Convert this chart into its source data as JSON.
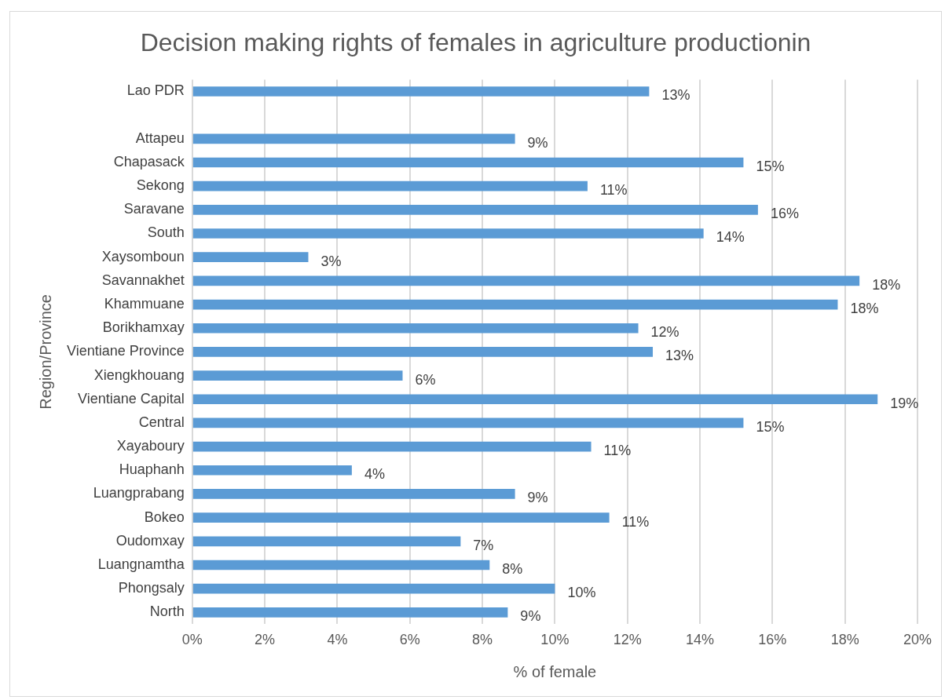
{
  "chart_data": {
    "type": "bar",
    "orientation": "horizontal",
    "title": "Decision making rights of females in agriculture productionin",
    "xlabel": "% of female",
    "ylabel": "Region/Province",
    "categories": [
      "Lao PDR",
      null,
      "Attapeu",
      "Chapasack",
      "Sekong",
      "Saravane",
      "South",
      "Xaysomboun",
      "Savannakhet",
      "Khammuane",
      "Borikhamxay",
      "Vientiane Province",
      "Xiengkhouang",
      "Vientiane Capital",
      "Central",
      "Xayaboury",
      "Huaphanh",
      "Luangprabang",
      "Bokeo",
      "Oudomxay",
      "Luangnamtha",
      "Phongsaly",
      "North"
    ],
    "values": [
      12.6,
      null,
      8.9,
      15.2,
      10.9,
      15.6,
      14.1,
      3.2,
      18.4,
      17.8,
      12.3,
      12.7,
      5.8,
      18.9,
      15.2,
      11.0,
      4.4,
      8.9,
      11.5,
      7.4,
      8.2,
      10.0,
      8.7
    ],
    "value_labels": [
      "13%",
      null,
      "9%",
      "15%",
      "11%",
      "16%",
      "14%",
      "3%",
      "18%",
      "18%",
      "12%",
      "13%",
      "6%",
      "19%",
      "15%",
      "11%",
      "4%",
      "9%",
      "11%",
      "7%",
      "8%",
      "10%",
      "9%"
    ],
    "color": "#5b9bd5",
    "xlim": [
      0,
      20
    ],
    "xticks": [
      {
        "value": 0,
        "label": "0%"
      },
      {
        "value": 2,
        "label": "2%"
      },
      {
        "value": 4,
        "label": "4%"
      },
      {
        "value": 6,
        "label": "6%"
      },
      {
        "value": 8,
        "label": "8%"
      },
      {
        "value": 10,
        "label": "10%"
      },
      {
        "value": 12,
        "label": "12%"
      },
      {
        "value": 14,
        "label": "14%"
      },
      {
        "value": 16,
        "label": "16%"
      },
      {
        "value": 18,
        "label": "18%"
      },
      {
        "value": 20,
        "label": "20%"
      }
    ],
    "grid": "x"
  }
}
